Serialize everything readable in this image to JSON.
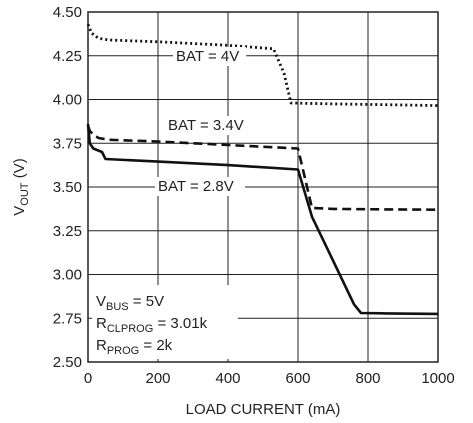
{
  "chart_data": {
    "type": "line",
    "xlabel": "LOAD CURRENT (mA)",
    "ylabel": {
      "main": "V",
      "sub": "OUT",
      "unit": " (V)"
    },
    "xlim": [
      0,
      1000
    ],
    "ylim": [
      2.5,
      4.5
    ],
    "xticks": [
      "0",
      "200",
      "400",
      "600",
      "800",
      "1000"
    ],
    "yticks": [
      "2.50",
      "2.75",
      "3.00",
      "3.25",
      "3.50",
      "3.75",
      "4.00",
      "4.25",
      "4.50"
    ],
    "grid": true,
    "series": [
      {
        "name": "BAT = 4V",
        "style": "dotted",
        "x": [
          0,
          10,
          30,
          60,
          200,
          400,
          530,
          560,
          580,
          700,
          850,
          1000
        ],
        "y": [
          4.43,
          4.38,
          4.35,
          4.34,
          4.33,
          4.31,
          4.29,
          4.15,
          3.98,
          3.975,
          3.97,
          3.965
        ]
      },
      {
        "name": "BAT = 3.4V",
        "style": "dashed",
        "x": [
          0,
          5,
          15,
          30,
          60,
          200,
          400,
          600,
          640,
          700,
          850,
          1000
        ],
        "y": [
          3.85,
          3.82,
          3.8,
          3.78,
          3.77,
          3.76,
          3.74,
          3.72,
          3.38,
          3.375,
          3.372,
          3.37
        ]
      },
      {
        "name": "BAT = 2.8V",
        "style": "solid",
        "x": [
          0,
          5,
          15,
          40,
          50,
          200,
          400,
          600,
          640,
          700,
          760,
          780,
          850,
          1000
        ],
        "y": [
          3.86,
          3.75,
          3.72,
          3.7,
          3.66,
          3.645,
          3.625,
          3.6,
          3.33,
          3.08,
          2.83,
          2.78,
          2.778,
          2.775
        ]
      }
    ],
    "labels": [
      "BAT = 4V",
      "BAT = 3.4V",
      "BAT = 2.8V"
    ],
    "conditions": [
      {
        "main": "V",
        "sub": "BUS",
        "rest": " = 5V"
      },
      {
        "main": "R",
        "sub": "CLPROG",
        "rest": " = 3.01k"
      },
      {
        "main": "R",
        "sub": "PROG",
        "rest": " = 2k"
      }
    ]
  },
  "colors": {
    "line": "#111111",
    "grid": "#222222",
    "background": "#ffffff"
  }
}
